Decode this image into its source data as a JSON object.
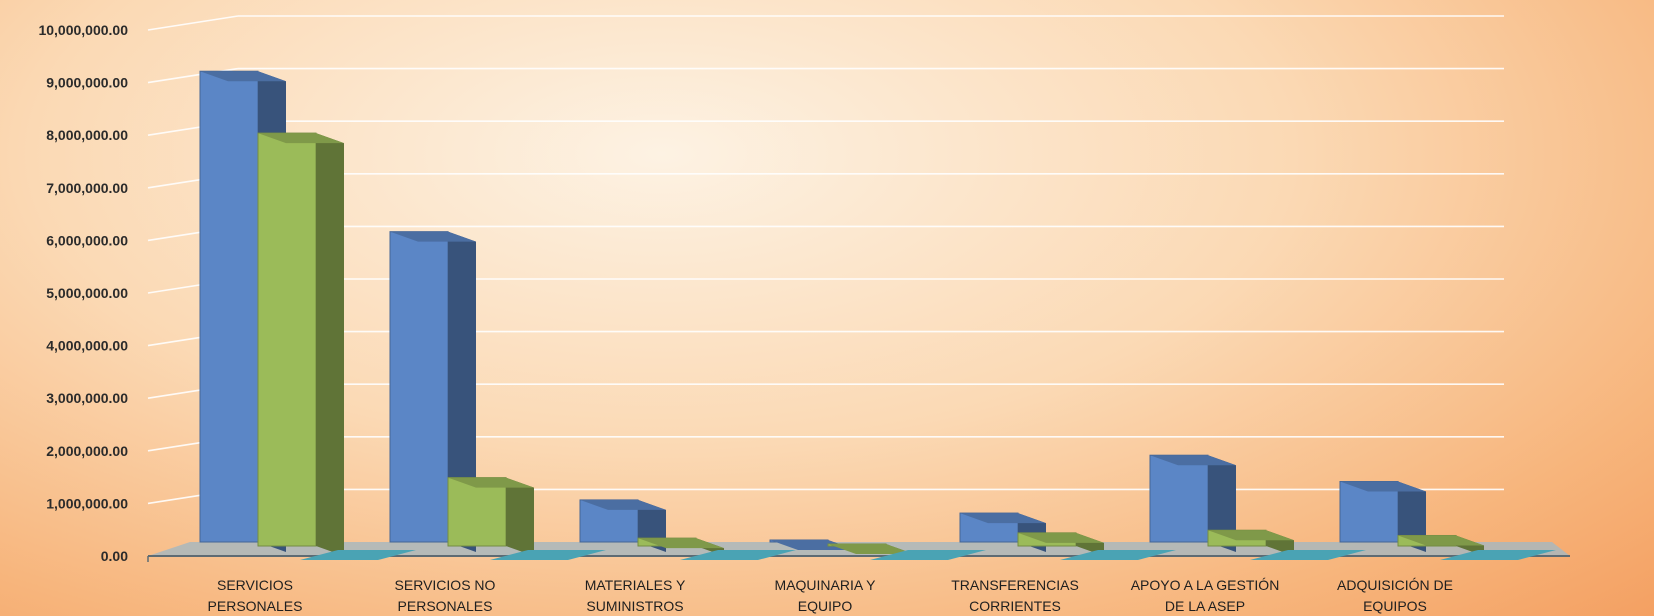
{
  "chart_data": {
    "type": "bar",
    "title": "",
    "xlabel": "",
    "ylabel": "",
    "ylim": [
      0,
      10000000
    ],
    "y_ticks": [
      "0.00",
      "1,000,000.00",
      "2,000,000.00",
      "3,000,000.00",
      "4,000,000.00",
      "5,000,000.00",
      "6,000,000.00",
      "7,000,000.00",
      "8,000,000.00",
      "9,000,000.00",
      "10,000,000.00"
    ],
    "categories": [
      [
        "SERVICIOS",
        "PERSONALES"
      ],
      [
        "SERVICIOS NO",
        "PERSONALES"
      ],
      [
        "MATERIALES Y",
        "SUMINISTROS"
      ],
      [
        "MAQUINARIA Y",
        "EQUIPO"
      ],
      [
        "TRANSFERENCIAS",
        "CORRIENTES"
      ],
      [
        "APOYO A LA GESTIÓN",
        "DE LA ASEP"
      ],
      [
        "ADQUISICIÓN DE",
        "EQUIPOS"
      ]
    ],
    "series": [
      {
        "color": "#5b86c6",
        "values": [
          8950000,
          5900000,
          800000,
          0,
          550000,
          1650000,
          1150000
        ]
      },
      {
        "color": "#9bbb59",
        "values": [
          7850000,
          1300000,
          150000,
          0,
          250000,
          300000,
          200000
        ]
      },
      {
        "color": "#4aa3b4",
        "values": [
          0,
          0,
          0,
          0,
          0,
          0,
          0
        ]
      }
    ],
    "grid": true,
    "legend": "none",
    "style": "3d-clustered-column"
  }
}
